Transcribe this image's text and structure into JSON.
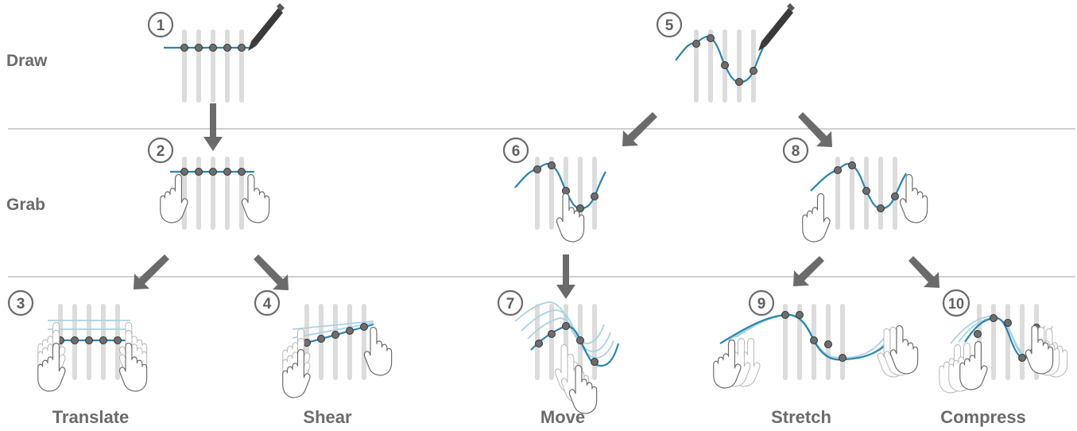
{
  "rows": {
    "draw": "Draw",
    "grab": "Grab"
  },
  "steps": [
    "1",
    "2",
    "3",
    "4",
    "5",
    "6",
    "7",
    "8",
    "9",
    "10"
  ],
  "captions": {
    "translate": "Translate",
    "shear": "Shear",
    "move": "Move",
    "stretch": "Stretch",
    "compress": "Compress"
  },
  "colors": {
    "curve": "#2a86ad",
    "curve_faded": "#a9d3e3",
    "point": "#6d6d6d",
    "bar": "#dcdcdc",
    "arrow": "#6b6b6b",
    "divider": "#b4b4b4",
    "text": "#6b6b6b"
  },
  "icons": [
    "pen-icon",
    "hand-icon",
    "arrow-icon"
  ]
}
